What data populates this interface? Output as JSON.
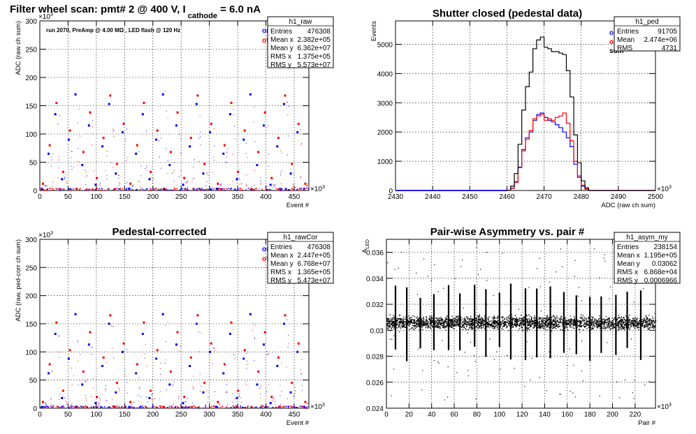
{
  "chart_data": [
    {
      "type": "scatter",
      "title": "Filter wheel scan: pmt#   2 @   400 V, I",
      "title_sub": "cathode",
      "title_suffix": "= 6.0 nA",
      "annotation": "run 2070, PreAmp @ 4.00 MΩ , LED flash @  120 Hz",
      "xlabel": "Event #",
      "ylabel": "ADC (raw ch sum)",
      "x_exponent": "×10",
      "x_exponent_power": "3",
      "y_exponent": "×10",
      "y_exponent_power": "3",
      "xlim": [
        0,
        476
      ],
      "ylim": [
        0,
        300
      ],
      "x_ticks": [
        "0",
        "50",
        "100",
        "150",
        "200",
        "250",
        "300",
        "350",
        "400",
        "450"
      ],
      "y_ticks": [
        "0",
        "50",
        "100",
        "150",
        "200",
        "250",
        "300"
      ],
      "grid": true,
      "series": [
        {
          "name": "on",
          "color": "#0000ff"
        },
        {
          "name": "off",
          "color": "#ff0000"
        }
      ],
      "levels_on": [
        3,
        10,
        20,
        30,
        45,
        65,
        78,
        90,
        103,
        115,
        135,
        153,
        170
      ],
      "levels_off": [
        3,
        12,
        22,
        33,
        47,
        68,
        80,
        93,
        106,
        118,
        138,
        155,
        168
      ],
      "stats": {
        "name": "h1_raw",
        "rows": [
          {
            "label": "Entries",
            "value": "476308"
          },
          {
            "label": "Mean x",
            "value": "2.382e+05"
          },
          {
            "label": "Mean y",
            "value": "6.362e+07"
          },
          {
            "label": "RMS x",
            "value": "1.375e+05"
          },
          {
            "label": "RMS y",
            "value": "5.573e+07"
          }
        ]
      }
    },
    {
      "type": "line",
      "title": "Shutter closed (pedestal data)",
      "xlabel": "ADC (raw ch sum)",
      "ylabel": "Events",
      "x_exponent": "×10",
      "x_exponent_power": "3",
      "xlim": [
        2430,
        2500
      ],
      "ylim": [
        0,
        5800
      ],
      "x_ticks": [
        "2430",
        "2440",
        "2450",
        "2460",
        "2470",
        "2480",
        "2490",
        "2500"
      ],
      "y_ticks": [
        "0",
        "1000",
        "2000",
        "3000",
        "4000",
        "5000"
      ],
      "grid": true,
      "bin_start": 2460,
      "bin_width": 1,
      "series": [
        {
          "name": "on",
          "color": "#0000ff",
          "values": [
            5,
            80,
            300,
            800,
            1400,
            1800,
            2000,
            2400,
            2600,
            2650,
            2500,
            2400,
            2350,
            2250,
            2150,
            2000,
            1800,
            1500,
            900,
            450,
            150,
            40
          ]
        },
        {
          "name": "off",
          "color": "#ff0000",
          "values": [
            5,
            70,
            280,
            780,
            1350,
            1750,
            2050,
            2450,
            2550,
            2600,
            2400,
            2450,
            2400,
            2500,
            2550,
            2650,
            2300,
            1700,
            1000,
            500,
            180,
            50
          ]
        },
        {
          "name": "sum",
          "color": "#000000",
          "values": [
            10,
            150,
            580,
            1580,
            2750,
            3550,
            4050,
            4850,
            5150,
            5250,
            4900,
            4850,
            4750,
            4750,
            4700,
            4650,
            4100,
            3200,
            1900,
            950,
            330,
            90
          ]
        }
      ],
      "stats": {
        "name": "h1_ped",
        "rows": [
          {
            "label": "Entries",
            "value": "91705"
          },
          {
            "label": "Mean",
            "value": "2.474e+06"
          },
          {
            "label": "RMS",
            "value": "4731"
          }
        ]
      }
    },
    {
      "type": "scatter",
      "title": "Pedestal-corrected",
      "xlabel": "Event #",
      "ylabel": "ADC (raw, ped-corr ch sum)",
      "x_exponent": "×10",
      "x_exponent_power": "3",
      "y_exponent": "×10",
      "y_exponent_power": "3",
      "xlim": [
        0,
        476
      ],
      "ylim": [
        0,
        300
      ],
      "x_ticks": [
        "0",
        "50",
        "100",
        "150",
        "200",
        "250",
        "300",
        "350",
        "400",
        "450"
      ],
      "y_ticks": [
        "0",
        "50",
        "100",
        "150",
        "200",
        "250",
        "300"
      ],
      "grid": true,
      "series": [
        {
          "name": "on",
          "color": "#0000ff"
        },
        {
          "name": "off",
          "color": "#ff0000"
        }
      ],
      "levels_on": [
        2,
        9,
        18,
        28,
        42,
        62,
        75,
        88,
        100,
        113,
        132,
        150,
        167
      ],
      "levels_off": [
        2,
        11,
        20,
        31,
        45,
        65,
        78,
        90,
        103,
        115,
        135,
        152,
        165
      ],
      "stats": {
        "name": "h1_rawCor",
        "rows": [
          {
            "label": "Entries",
            "value": "476308"
          },
          {
            "label": "Mean x",
            "value": "2.447e+05"
          },
          {
            "label": "Mean y",
            "value": "6.768e+07"
          },
          {
            "label": "RMS x",
            "value": "1.365e+05"
          },
          {
            "label": "RMS y",
            "value": "5.473e+07"
          }
        ]
      }
    },
    {
      "type": "scatter",
      "title": "Pair-wise Asymmetry vs. pair #",
      "xlabel": "Pair #",
      "ylabel": "A",
      "ylabel_sub": "LED",
      "x_exponent": "×10",
      "x_exponent_power": "3",
      "xlim": [
        0,
        238
      ],
      "ylim": [
        0.024,
        0.037
      ],
      "x_ticks": [
        "0",
        "20",
        "40",
        "60",
        "80",
        "100",
        "120",
        "140",
        "160",
        "180",
        "200",
        "220"
      ],
      "y_ticks": [
        "0.024",
        "0.026",
        "0.028",
        "0.03",
        "0.032",
        "0.034",
        "0.036"
      ],
      "grid": true,
      "band_center": 0.0306,
      "band_half_width": 0.0005,
      "spike_x": [
        8,
        18,
        30,
        42,
        55,
        65,
        78,
        88,
        100,
        110,
        123,
        133,
        145,
        157,
        168,
        180,
        190,
        203,
        213,
        225
      ],
      "stats": {
        "name": "h1_asym_my",
        "rows": [
          {
            "label": "Entries",
            "value": "238154"
          },
          {
            "label": "Mean x",
            "value": "1.195e+05"
          },
          {
            "label": "Mean y",
            "value": "0.03062"
          },
          {
            "label": "RMS x",
            "value": "6.868e+04"
          },
          {
            "label": "RMS y",
            "value": "0.0006966"
          }
        ]
      }
    }
  ]
}
